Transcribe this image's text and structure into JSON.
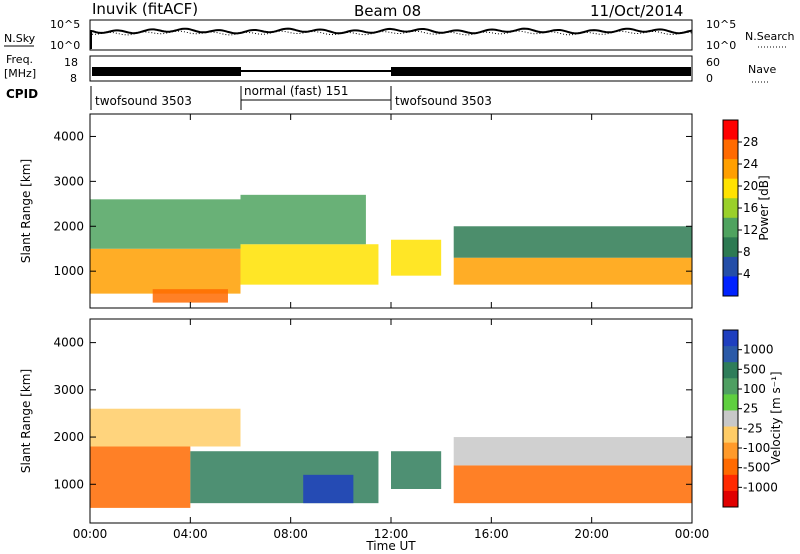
{
  "header": {
    "station": "Inuvik (fitACF)",
    "beam": "Beam 08",
    "date": "11/Oct/2014"
  },
  "noise_panel": {
    "left_label": "N.Sky",
    "left_ticks": [
      "10^5",
      "10^0"
    ],
    "right_ticks": [
      "10^5",
      "10^0"
    ],
    "right_label": "N.Search"
  },
  "freq_panel": {
    "left_label_line1": "Freq.",
    "left_label_line2": "[MHz]",
    "left_ticks": [
      "18",
      "8"
    ],
    "right_ticks": [
      "60",
      "0"
    ],
    "right_label": "Nave"
  },
  "cpid": {
    "label": "CPID",
    "segments": [
      {
        "name": "twofsound 3503",
        "start_hour": 0,
        "end_hour": 6
      },
      {
        "name": "normal (fast) 151",
        "start_hour": 6,
        "end_hour": 12
      },
      {
        "name": "twofsound 3503",
        "start_hour": 12,
        "end_hour": 24
      }
    ]
  },
  "x_axis": {
    "label": "Time UT",
    "ticks": [
      "00:00",
      "04:00",
      "08:00",
      "12:00",
      "16:00",
      "20:00",
      "00:00"
    ]
  },
  "power_panel": {
    "ylabel": "Slant Range [km]",
    "yticks": [
      "4000",
      "3000",
      "2000",
      "1000"
    ],
    "colorbar_label": "Power [dB]",
    "colorbar_ticks": [
      "28",
      "24",
      "20",
      "16",
      "12",
      "8",
      "4"
    ],
    "colorbar_colors": [
      "#ff0000",
      "#ff6a00",
      "#ff9f00",
      "#ffe200",
      "#9ad02a",
      "#4fa35f",
      "#2d7a52",
      "#244ea8",
      "#0022ff"
    ]
  },
  "velocity_panel": {
    "ylabel": "Slant Range [km]",
    "yticks": [
      "4000",
      "3000",
      "2000",
      "1000"
    ],
    "colorbar_label": "Velocity [m s⁻¹]",
    "colorbar_ticks": [
      "1000",
      "500",
      "100",
      "25",
      "-25",
      "-100",
      "-500",
      "-1000"
    ],
    "colorbar_colors": [
      "#1f3fbf",
      "#2b5aa8",
      "#2f7d5a",
      "#4f9f62",
      "#5fcf3f",
      "#c8c8c8",
      "#ffcc66",
      "#ff9a2a",
      "#ff6a00",
      "#ff2a00",
      "#e00000"
    ]
  },
  "chart_data": [
    {
      "type": "heatmap",
      "title": "Power",
      "xlabel": "Time UT",
      "ylabel": "Slant Range [km]",
      "xlim": [
        0,
        24
      ],
      "ylim": [
        180,
        4500
      ],
      "colorbar_label": "Power [dB]",
      "colorbar_range": [
        0,
        32
      ],
      "regions": [
        {
          "t0": 0.0,
          "t1": 6.0,
          "r0": 500,
          "r1": 1500,
          "dB": 24
        },
        {
          "t0": 0.0,
          "t1": 6.0,
          "r0": 1500,
          "r1": 2600,
          "dB": 12
        },
        {
          "t0": 2.5,
          "t1": 5.5,
          "r0": 300,
          "r1": 600,
          "dB": 30
        },
        {
          "t0": 6.0,
          "t1": 11.5,
          "r0": 700,
          "r1": 1600,
          "dB": 22
        },
        {
          "t0": 6.0,
          "t1": 11.0,
          "r0": 1600,
          "r1": 2700,
          "dB": 14
        },
        {
          "t0": 12.0,
          "t1": 14.0,
          "r0": 900,
          "r1": 1700,
          "dB": 20
        },
        {
          "t0": 14.5,
          "t1": 24.0,
          "r0": 700,
          "r1": 1300,
          "dB": 26
        },
        {
          "t0": 14.5,
          "t1": 24.0,
          "r0": 1300,
          "r1": 2000,
          "dB": 10
        }
      ]
    },
    {
      "type": "heatmap",
      "title": "Velocity",
      "xlabel": "Time UT",
      "ylabel": "Slant Range [km]",
      "xlim": [
        0,
        24
      ],
      "ylim": [
        180,
        4500
      ],
      "colorbar_label": "Velocity [m s^-1]",
      "colorbar_range": [
        -1000,
        1000
      ],
      "regions": [
        {
          "t0": 0.0,
          "t1": 4.0,
          "r0": 500,
          "r1": 1800,
          "vel": -300
        },
        {
          "t0": 0.0,
          "t1": 6.0,
          "r0": 1800,
          "r1": 2600,
          "vel": -60
        },
        {
          "t0": 4.0,
          "t1": 11.5,
          "r0": 600,
          "r1": 1700,
          "vel": 150
        },
        {
          "t0": 8.5,
          "t1": 10.5,
          "r0": 600,
          "r1": 1200,
          "vel": 800
        },
        {
          "t0": 12.0,
          "t1": 14.0,
          "r0": 900,
          "r1": 1700,
          "vel": 120
        },
        {
          "t0": 14.5,
          "t1": 24.0,
          "r0": 600,
          "r1": 1400,
          "vel": -300
        },
        {
          "t0": 14.5,
          "t1": 24.0,
          "r0": 1400,
          "r1": 2000,
          "vel": -20
        }
      ]
    }
  ]
}
